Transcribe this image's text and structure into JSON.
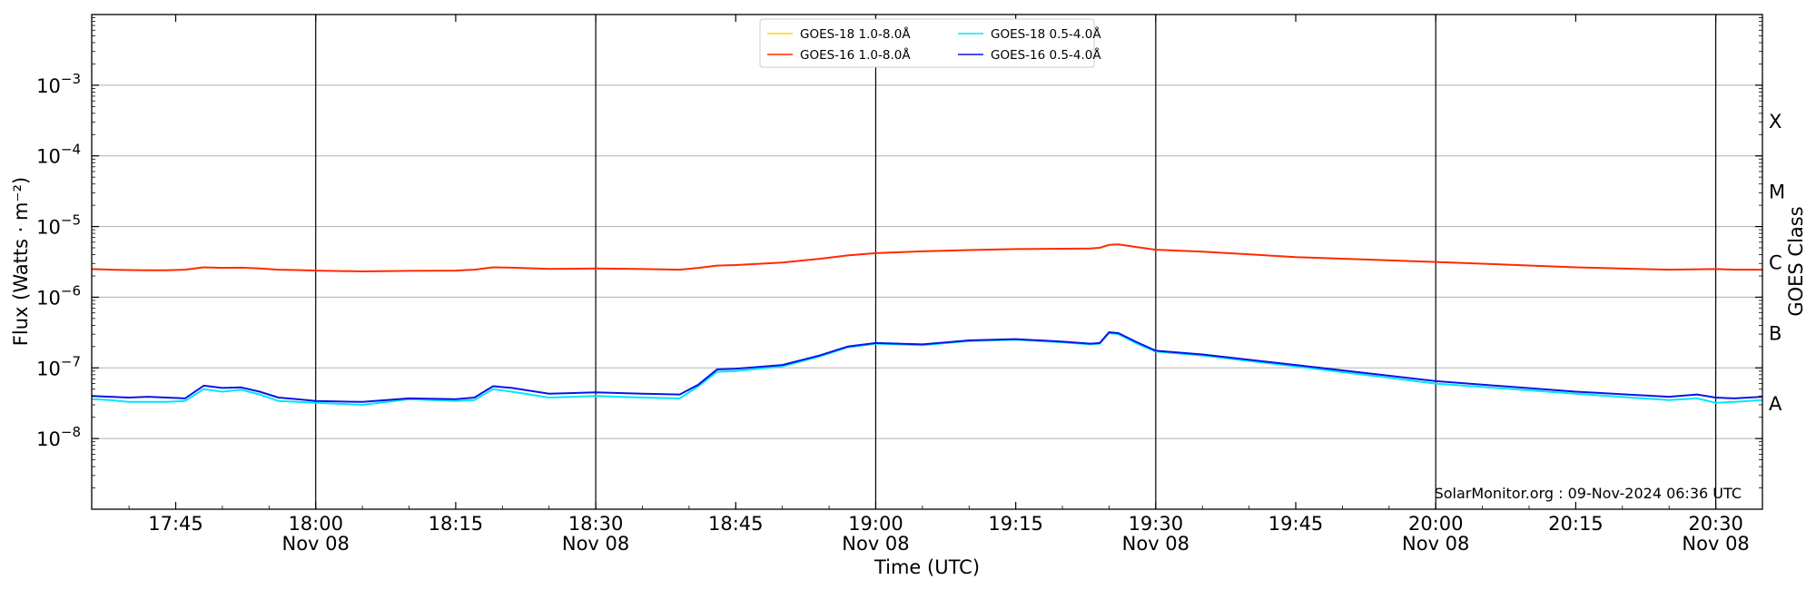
{
  "chart_data": {
    "type": "line",
    "xlabel": "Time (UTC)",
    "ylabel": "Flux (Watts · m⁻²)",
    "y2label": "GOES Class",
    "yscale": "log",
    "ylim": [
      1e-09,
      0.01
    ],
    "xlim": [
      "2024-11-08T17:36",
      "2024-11-08T20:35"
    ],
    "x_ticks": [
      {
        "time": "2024-11-08T17:45",
        "label": "17:45",
        "date": ""
      },
      {
        "time": "2024-11-08T18:00",
        "label": "18:00",
        "date": "Nov 08"
      },
      {
        "time": "2024-11-08T18:15",
        "label": "18:15",
        "date": ""
      },
      {
        "time": "2024-11-08T18:30",
        "label": "18:30",
        "date": "Nov 08"
      },
      {
        "time": "2024-11-08T18:45",
        "label": "18:45",
        "date": ""
      },
      {
        "time": "2024-11-08T19:00",
        "label": "19:00",
        "date": "Nov 08"
      },
      {
        "time": "2024-11-08T19:15",
        "label": "19:15",
        "date": ""
      },
      {
        "time": "2024-11-08T19:30",
        "label": "19:30",
        "date": "Nov 08"
      },
      {
        "time": "2024-11-08T19:45",
        "label": "19:45",
        "date": ""
      },
      {
        "time": "2024-11-08T20:00",
        "label": "20:00",
        "date": "Nov 08"
      },
      {
        "time": "2024-11-08T20:15",
        "label": "20:15",
        "date": ""
      },
      {
        "time": "2024-11-08T20:30",
        "label": "20:30",
        "date": "Nov 08"
      }
    ],
    "vertical_lines": [
      "2024-11-08T18:00",
      "2024-11-08T18:30",
      "2024-11-08T19:00",
      "2024-11-08T19:30",
      "2024-11-08T20:00",
      "2024-11-08T20:30"
    ],
    "y_ticks": [
      {
        "value": 1e-08,
        "base": "10",
        "exp": "−8"
      },
      {
        "value": 1e-07,
        "base": "10",
        "exp": "−7"
      },
      {
        "value": 1e-06,
        "base": "10",
        "exp": "−6"
      },
      {
        "value": 1e-05,
        "base": "10",
        "exp": "−5"
      },
      {
        "value": 0.0001,
        "base": "10",
        "exp": "−4"
      },
      {
        "value": 0.001,
        "base": "10",
        "exp": "−3"
      }
    ],
    "goes_classes": [
      {
        "label": "A",
        "value": 3.16e-08
      },
      {
        "label": "B",
        "value": 3.16e-07
      },
      {
        "label": "C",
        "value": 3.16e-06
      },
      {
        "label": "M",
        "value": 3.16e-05
      },
      {
        "label": "X",
        "value": 0.000316
      }
    ],
    "grid": "horizontal",
    "legend_position": "top-center",
    "credit": "SolarMonitor.org : 09-Nov-2024 06:36 UTC",
    "series": [
      {
        "name": "GOES-18 1.0-8.0Å",
        "color": "#FFD700",
        "x": [],
        "values": []
      },
      {
        "name": "GOES-16 1.0-8.0Å",
        "color": "#FF2A00",
        "x": [
          "2024-11-08T17:36",
          "2024-11-08T17:38",
          "2024-11-08T17:40",
          "2024-11-08T17:42",
          "2024-11-08T17:44",
          "2024-11-08T17:46",
          "2024-11-08T17:48",
          "2024-11-08T17:50",
          "2024-11-08T17:52",
          "2024-11-08T17:54",
          "2024-11-08T17:56",
          "2024-11-08T17:58",
          "2024-11-08T18:00",
          "2024-11-08T18:05",
          "2024-11-08T18:10",
          "2024-11-08T18:15",
          "2024-11-08T18:17",
          "2024-11-08T18:19",
          "2024-11-08T18:21",
          "2024-11-08T18:25",
          "2024-11-08T18:30",
          "2024-11-08T18:35",
          "2024-11-08T18:39",
          "2024-11-08T18:41",
          "2024-11-08T18:43",
          "2024-11-08T18:45",
          "2024-11-08T18:50",
          "2024-11-08T18:54",
          "2024-11-08T18:57",
          "2024-11-08T19:00",
          "2024-11-08T19:05",
          "2024-11-08T19:10",
          "2024-11-08T19:15",
          "2024-11-08T19:20",
          "2024-11-08T19:23",
          "2024-11-08T19:24",
          "2024-11-08T19:25",
          "2024-11-08T19:26",
          "2024-11-08T19:28",
          "2024-11-08T19:30",
          "2024-11-08T19:35",
          "2024-11-08T19:45",
          "2024-11-08T20:00",
          "2024-11-08T20:15",
          "2024-11-08T20:25",
          "2024-11-08T20:30",
          "2024-11-08T20:32",
          "2024-11-08T20:35"
        ],
        "values": [
          2.5e-06,
          2.45e-06,
          2.42e-06,
          2.4e-06,
          2.4e-06,
          2.45e-06,
          2.65e-06,
          2.6e-06,
          2.62e-06,
          2.55e-06,
          2.45e-06,
          2.42e-06,
          2.38e-06,
          2.32e-06,
          2.36e-06,
          2.38e-06,
          2.45e-06,
          2.65e-06,
          2.62e-06,
          2.52e-06,
          2.55e-06,
          2.5e-06,
          2.45e-06,
          2.6e-06,
          2.8e-06,
          2.85e-06,
          3.1e-06,
          3.5e-06,
          3.9e-06,
          4.2e-06,
          4.45e-06,
          4.65e-06,
          4.8e-06,
          4.85e-06,
          4.9e-06,
          5e-06,
          5.5e-06,
          5.6e-06,
          5.1e-06,
          4.7e-06,
          4.4e-06,
          3.7e-06,
          3.15e-06,
          2.65e-06,
          2.45e-06,
          2.5e-06,
          2.45e-06,
          2.45e-06
        ]
      },
      {
        "name": "GOES-18 0.5-4.0Å",
        "color": "#00E5FF",
        "x": [
          "2024-11-08T17:36",
          "2024-11-08T17:38",
          "2024-11-08T17:40",
          "2024-11-08T17:42",
          "2024-11-08T17:44",
          "2024-11-08T17:46",
          "2024-11-08T17:48",
          "2024-11-08T17:50",
          "2024-11-08T17:52",
          "2024-11-08T17:54",
          "2024-11-08T17:56",
          "2024-11-08T17:58",
          "2024-11-08T18:00",
          "2024-11-08T18:05",
          "2024-11-08T18:10",
          "2024-11-08T18:15",
          "2024-11-08T18:17",
          "2024-11-08T18:19",
          "2024-11-08T18:21",
          "2024-11-08T18:25",
          "2024-11-08T18:30",
          "2024-11-08T18:35",
          "2024-11-08T18:39",
          "2024-11-08T18:41",
          "2024-11-08T18:43",
          "2024-11-08T18:45",
          "2024-11-08T18:50",
          "2024-11-08T18:54",
          "2024-11-08T18:57",
          "2024-11-08T19:00",
          "2024-11-08T19:05",
          "2024-11-08T19:10",
          "2024-11-08T19:15",
          "2024-11-08T19:20",
          "2024-11-08T19:23",
          "2024-11-08T19:24",
          "2024-11-08T19:25",
          "2024-11-08T19:26",
          "2024-11-08T19:28",
          "2024-11-08T19:30",
          "2024-11-08T19:35",
          "2024-11-08T19:45",
          "2024-11-08T20:00",
          "2024-11-08T20:15",
          "2024-11-08T20:25",
          "2024-11-08T20:28",
          "2024-11-08T20:30",
          "2024-11-08T20:32",
          "2024-11-08T20:35"
        ],
        "values": [
          3.6e-08,
          3.5e-08,
          3.3e-08,
          3.3e-08,
          3.3e-08,
          3.4e-08,
          5e-08,
          4.6e-08,
          4.9e-08,
          4.2e-08,
          3.4e-08,
          3.3e-08,
          3.2e-08,
          3e-08,
          3.6e-08,
          3.4e-08,
          3.5e-08,
          5e-08,
          4.6e-08,
          3.8e-08,
          4e-08,
          3.8e-08,
          3.7e-08,
          5.5e-08,
          8.8e-08,
          9e-08,
          1.05e-07,
          1.45e-07,
          1.95e-07,
          2.2e-07,
          2.1e-07,
          2.4e-07,
          2.5e-07,
          2.3e-07,
          2.15e-07,
          2.2e-07,
          3.1e-07,
          3e-07,
          2.2e-07,
          1.7e-07,
          1.5e-07,
          1.05e-07,
          6e-08,
          4.3e-08,
          3.5e-08,
          3.7e-08,
          3.2e-08,
          3.3e-08,
          3.5e-08
        ]
      },
      {
        "name": "GOES-16 0.5-4.0Å",
        "color": "#0A14E6",
        "x": [
          "2024-11-08T17:36",
          "2024-11-08T17:38",
          "2024-11-08T17:40",
          "2024-11-08T17:42",
          "2024-11-08T17:44",
          "2024-11-08T17:46",
          "2024-11-08T17:48",
          "2024-11-08T17:50",
          "2024-11-08T17:52",
          "2024-11-08T17:54",
          "2024-11-08T17:56",
          "2024-11-08T17:58",
          "2024-11-08T18:00",
          "2024-11-08T18:05",
          "2024-11-08T18:10",
          "2024-11-08T18:15",
          "2024-11-08T18:17",
          "2024-11-08T18:19",
          "2024-11-08T18:21",
          "2024-11-08T18:25",
          "2024-11-08T18:30",
          "2024-11-08T18:35",
          "2024-11-08T18:39",
          "2024-11-08T18:41",
          "2024-11-08T18:43",
          "2024-11-08T18:45",
          "2024-11-08T18:50",
          "2024-11-08T18:54",
          "2024-11-08T18:57",
          "2024-11-08T19:00",
          "2024-11-08T19:05",
          "2024-11-08T19:10",
          "2024-11-08T19:15",
          "2024-11-08T19:20",
          "2024-11-08T19:23",
          "2024-11-08T19:24",
          "2024-11-08T19:25",
          "2024-11-08T19:26",
          "2024-11-08T19:28",
          "2024-11-08T19:30",
          "2024-11-08T19:35",
          "2024-11-08T19:45",
          "2024-11-08T20:00",
          "2024-11-08T20:15",
          "2024-11-08T20:25",
          "2024-11-08T20:28",
          "2024-11-08T20:30",
          "2024-11-08T20:32",
          "2024-11-08T20:35"
        ],
        "values": [
          4e-08,
          3.9e-08,
          3.8e-08,
          3.9e-08,
          3.8e-08,
          3.7e-08,
          5.6e-08,
          5.2e-08,
          5.3e-08,
          4.6e-08,
          3.8e-08,
          3.6e-08,
          3.4e-08,
          3.3e-08,
          3.7e-08,
          3.6e-08,
          3.8e-08,
          5.5e-08,
          5.2e-08,
          4.3e-08,
          4.5e-08,
          4.3e-08,
          4.2e-08,
          5.8e-08,
          9.5e-08,
          9.7e-08,
          1.1e-07,
          1.5e-07,
          2e-07,
          2.25e-07,
          2.15e-07,
          2.45e-07,
          2.55e-07,
          2.35e-07,
          2.2e-07,
          2.25e-07,
          3.2e-07,
          3.1e-07,
          2.3e-07,
          1.75e-07,
          1.55e-07,
          1.1e-07,
          6.5e-08,
          4.6e-08,
          3.9e-08,
          4.2e-08,
          3.8e-08,
          3.7e-08,
          3.9e-08
        ]
      }
    ]
  }
}
